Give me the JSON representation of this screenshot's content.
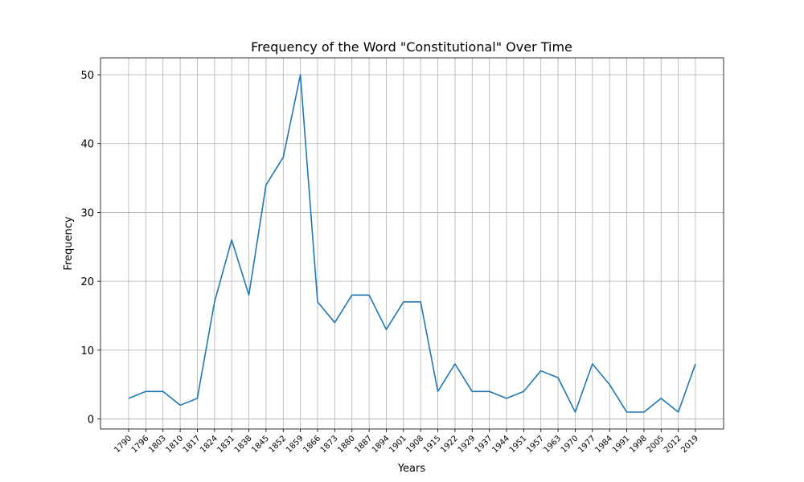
{
  "chart_data": {
    "type": "line",
    "title": "Frequency of the Word \"Constitutional\" Over Time",
    "xlabel": "Years",
    "ylabel": "Frequency",
    "x": [
      1790,
      1796,
      1803,
      1810,
      1817,
      1824,
      1831,
      1838,
      1845,
      1852,
      1859,
      1866,
      1873,
      1880,
      1887,
      1894,
      1901,
      1908,
      1915,
      1922,
      1929,
      1937,
      1944,
      1951,
      1957,
      1963,
      1970,
      1977,
      1984,
      1991,
      1998,
      2005,
      2012,
      2019
    ],
    "xtick_labels": [
      "1790",
      "1796",
      "1803",
      "1810",
      "1817",
      "1824",
      "1831",
      "1838",
      "1845",
      "1852",
      "1859",
      "1866",
      "1873",
      "1880",
      "1887",
      "1894",
      "1901",
      "1908",
      "1915",
      "1922",
      "1929",
      "1937",
      "1944",
      "1951",
      "1957",
      "1963",
      "1970",
      "1977",
      "1984",
      "1991",
      "1998",
      "2005",
      "2012",
      "2019"
    ],
    "series": [
      {
        "values": [
          3,
          4,
          4,
          2,
          3,
          17,
          26,
          18,
          34,
          38,
          50,
          17,
          14,
          18,
          18,
          13,
          17,
          17,
          4,
          8,
          4,
          4,
          3,
          4,
          7,
          6,
          1,
          8,
          5,
          1,
          1,
          3,
          1,
          8
        ],
        "color": "#1f77b4"
      }
    ],
    "yticks": [
      0,
      10,
      20,
      30,
      40,
      50
    ],
    "ytick_labels": [
      "0",
      "10",
      "20",
      "30",
      "40",
      "50"
    ],
    "ylim": [
      -1.45,
      52.45
    ],
    "grid": true,
    "legend": "none"
  }
}
